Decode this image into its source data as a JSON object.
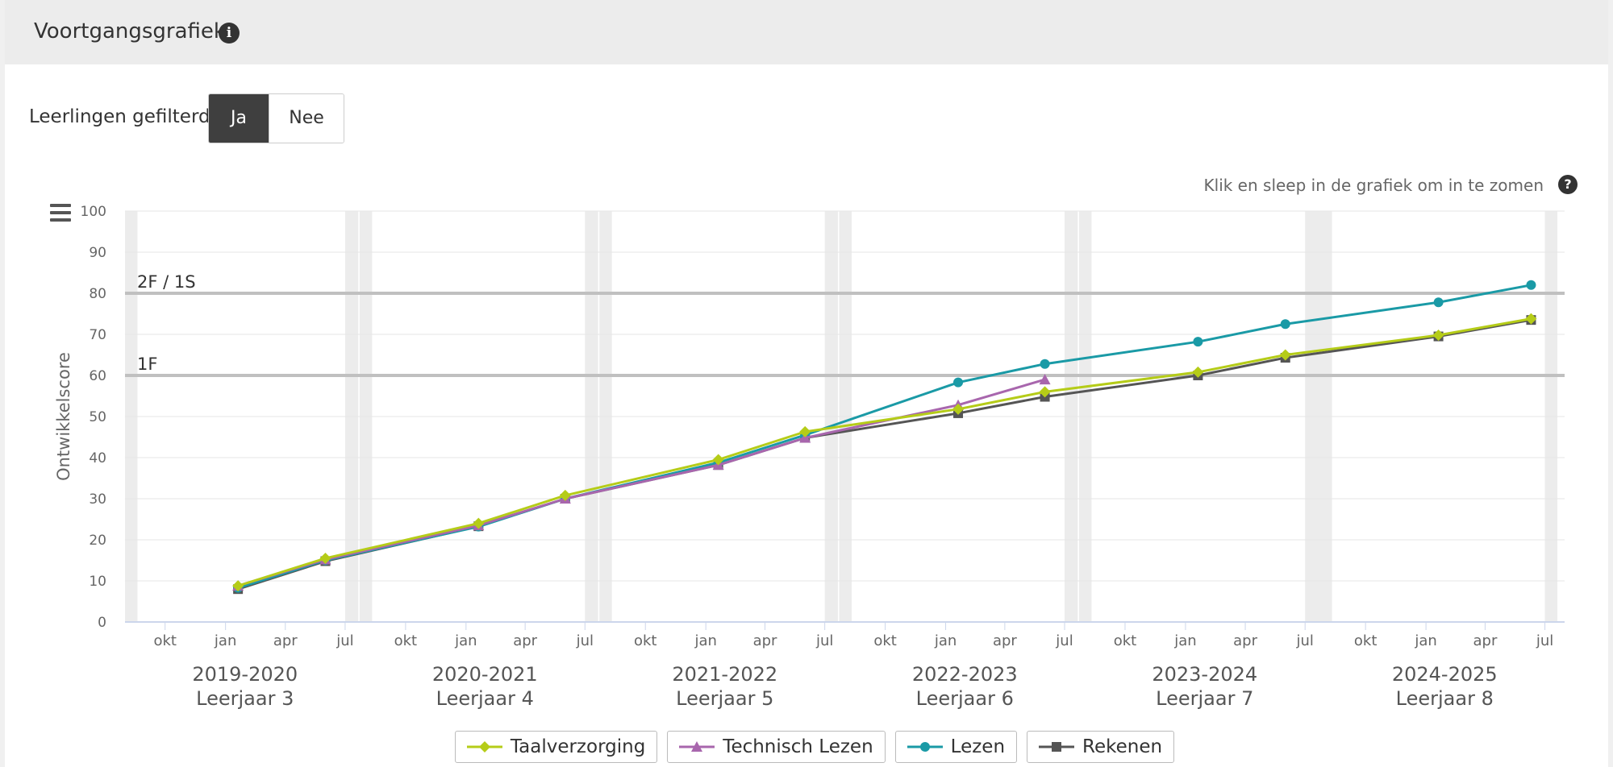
{
  "header": {
    "title": "Voortgangsgrafiek",
    "info_icon": "info-icon"
  },
  "filter": {
    "label": "Leerlingen gefilterd:",
    "options": [
      "Ja",
      "Nee"
    ],
    "selected": "Ja"
  },
  "zoom_hint": "Klik en sleep in de grafiek om in te zomen",
  "chart_data": {
    "type": "line",
    "ylabel": "Ontwikkelscore",
    "ylim": [
      0,
      100
    ],
    "yticks": [
      0,
      10,
      20,
      30,
      40,
      50,
      60,
      70,
      80,
      90,
      100
    ],
    "xlim": [
      "2019-08-01",
      "2025-07-31"
    ],
    "xticks": [
      "2019-10-01",
      "2020-01-01",
      "2020-04-01",
      "2020-07-01",
      "2020-10-01",
      "2021-01-01",
      "2021-04-01",
      "2021-07-01",
      "2021-10-01",
      "2022-01-01",
      "2022-04-01",
      "2022-07-01",
      "2022-10-01",
      "2023-01-01",
      "2023-04-01",
      "2023-07-01",
      "2023-10-01",
      "2024-01-01",
      "2024-04-01",
      "2024-07-01",
      "2024-10-01",
      "2025-01-01",
      "2025-04-01",
      "2025-07-01"
    ],
    "xtick_labels": [
      "okt",
      "jan",
      "apr",
      "jul",
      "okt",
      "jan",
      "apr",
      "jul",
      "okt",
      "jan",
      "apr",
      "jul",
      "okt",
      "jan",
      "apr",
      "jul",
      "okt",
      "jan",
      "apr",
      "jul",
      "okt",
      "jan",
      "apr",
      "jul"
    ],
    "school_years": [
      {
        "year": "2019-2020",
        "grade": "Leerjaar 3"
      },
      {
        "year": "2020-2021",
        "grade": "Leerjaar 4"
      },
      {
        "year": "2021-2022",
        "grade": "Leerjaar 5"
      },
      {
        "year": "2022-2023",
        "grade": "Leerjaar 6"
      },
      {
        "year": "2023-2024",
        "grade": "Leerjaar 7"
      },
      {
        "year": "2024-2025",
        "grade": "Leerjaar 8"
      }
    ],
    "reference_lines": [
      {
        "label": "2F / 1S",
        "value": 80
      },
      {
        "label": "1F",
        "value": 60
      }
    ],
    "holiday_bands": [
      [
        "2019-08-01",
        "2019-08-20"
      ],
      [
        "2020-07-01",
        "2020-07-21"
      ],
      [
        "2020-07-23",
        "2020-08-11"
      ],
      [
        "2021-07-01",
        "2021-07-21"
      ],
      [
        "2021-07-23",
        "2021-08-11"
      ],
      [
        "2022-07-01",
        "2022-07-21"
      ],
      [
        "2022-07-23",
        "2022-08-11"
      ],
      [
        "2023-07-01",
        "2023-07-21"
      ],
      [
        "2023-07-23",
        "2023-08-11"
      ],
      [
        "2024-07-01",
        "2024-08-11"
      ],
      [
        "2025-07-01",
        "2025-07-20"
      ]
    ],
    "series": [
      {
        "name": "Taalverzorging",
        "color": "#b5cc18",
        "marker": "diamond",
        "points": [
          [
            "2020-01-20",
            8.8
          ],
          [
            "2020-06-01",
            15.5
          ],
          [
            "2021-01-20",
            24.0
          ],
          [
            "2021-06-01",
            30.8
          ],
          [
            "2022-01-20",
            39.5
          ],
          [
            "2022-06-01",
            46.3
          ],
          [
            "2023-01-20",
            51.8
          ],
          [
            "2023-06-01",
            56.0
          ],
          [
            "2024-01-20",
            60.8
          ],
          [
            "2024-06-01",
            65.0
          ],
          [
            "2025-01-20",
            69.8
          ],
          [
            "2025-06-10",
            73.8
          ]
        ]
      },
      {
        "name": "Technisch Lezen",
        "color": "#a866ad",
        "marker": "triangle",
        "points": [
          [
            "2020-01-20",
            8.8
          ],
          [
            "2020-06-01",
            15.2
          ],
          [
            "2021-01-20",
            23.5
          ],
          [
            "2021-06-01",
            30.0
          ],
          [
            "2022-01-20",
            38.2
          ],
          [
            "2022-06-01",
            44.8
          ],
          [
            "2023-01-20",
            52.8
          ],
          [
            "2023-06-01",
            59.0
          ]
        ]
      },
      {
        "name": "Lezen",
        "color": "#1a9aa6",
        "marker": "circle",
        "points": [
          [
            "2020-01-20",
            8.3
          ],
          [
            "2020-06-01",
            15.0
          ],
          [
            "2021-01-20",
            23.2
          ],
          [
            "2021-06-01",
            30.0
          ],
          [
            "2022-01-20",
            38.8
          ],
          [
            "2022-06-01",
            45.5
          ],
          [
            "2023-01-20",
            58.3
          ],
          [
            "2023-06-01",
            62.8
          ],
          [
            "2024-01-20",
            68.2
          ],
          [
            "2024-06-01",
            72.5
          ],
          [
            "2025-01-20",
            77.8
          ],
          [
            "2025-06-10",
            82.0
          ]
        ]
      },
      {
        "name": "Rekenen",
        "color": "#555555",
        "marker": "square",
        "points": [
          [
            "2020-01-20",
            8.0
          ],
          [
            "2020-06-01",
            14.8
          ],
          [
            "2021-01-20",
            23.3
          ],
          [
            "2021-06-01",
            30.0
          ],
          [
            "2022-01-20",
            38.2
          ],
          [
            "2022-06-01",
            44.8
          ],
          [
            "2023-01-20",
            50.8
          ],
          [
            "2023-06-01",
            54.8
          ],
          [
            "2024-01-20",
            60.0
          ],
          [
            "2024-06-01",
            64.3
          ],
          [
            "2025-01-20",
            69.5
          ],
          [
            "2025-06-10",
            73.5
          ]
        ]
      }
    ]
  }
}
